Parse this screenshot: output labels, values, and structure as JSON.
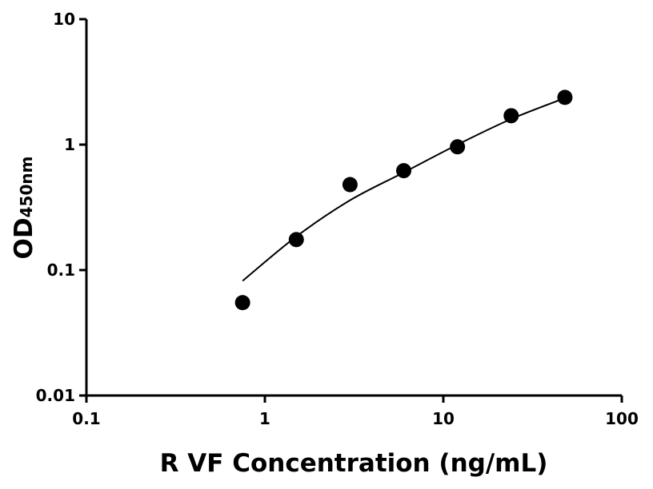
{
  "chart_data": {
    "type": "scatter",
    "xlabel": "R VF Concentration (ng/mL)",
    "ylabel": "OD",
    "ylabel_subscript": "450nm",
    "xscale": "log",
    "yscale": "log",
    "xlim": [
      0.1,
      100
    ],
    "xticks": [
      0.1,
      1,
      10,
      100
    ],
    "ylim": [
      0.01,
      10
    ],
    "yticks": [
      0.01,
      0.1,
      1,
      10
    ],
    "series": [
      {
        "type": "scatter",
        "color": "#000000",
        "x": [
          0.75,
          1.5,
          3,
          6,
          12,
          24,
          48
        ],
        "values": [
          0.055,
          0.175,
          0.48,
          0.62,
          0.96,
          1.7,
          2.38
        ]
      },
      {
        "type": "line",
        "color": "#000000",
        "x": [
          0.75,
          1.5,
          3,
          6,
          12,
          24,
          48
        ],
        "values": [
          0.082,
          0.185,
          0.36,
          0.6,
          1.0,
          1.6,
          2.35
        ]
      }
    ]
  }
}
